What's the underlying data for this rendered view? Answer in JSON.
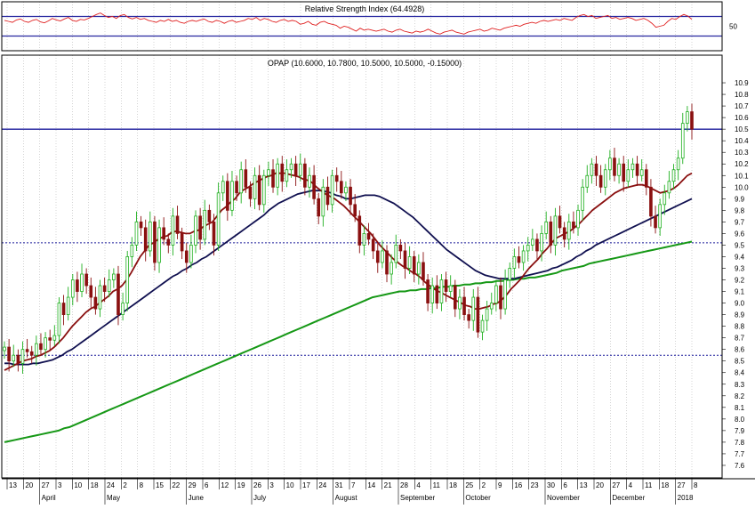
{
  "chart_data": [
    {
      "type": "line",
      "panel": "rsi",
      "title": "Relative Strength Index (64.4928)",
      "ylim": [
        0,
        100
      ],
      "y_ticks": [
        "50"
      ],
      "reference_lines": [
        70,
        30
      ],
      "colors": {
        "rsi": "#e02020",
        "ref": "#2828a0"
      },
      "series": [
        {
          "values": [
            62,
            60,
            58,
            63,
            65,
            60,
            58,
            62,
            64,
            59,
            57,
            61,
            66,
            63,
            61,
            65,
            68,
            62,
            60,
            64,
            63,
            66,
            70,
            74,
            77,
            72,
            68,
            70,
            66,
            72,
            74,
            68,
            65,
            68,
            64,
            66,
            62,
            60,
            58,
            62,
            60,
            64,
            60,
            62,
            58,
            56,
            60,
            62,
            60,
            63,
            65,
            60,
            58,
            62,
            60,
            56,
            60,
            62,
            58,
            60,
            62,
            66,
            64,
            68,
            62,
            66,
            64,
            60,
            58,
            62,
            64,
            60,
            62,
            60,
            54,
            56,
            60,
            54,
            52,
            58,
            60,
            56,
            54,
            52,
            46,
            50,
            48,
            44,
            40,
            46,
            42,
            44,
            42,
            40,
            42,
            44,
            40,
            38,
            42,
            44,
            40,
            38,
            36,
            40,
            38,
            40,
            44,
            40,
            36,
            34,
            38,
            40,
            42,
            38,
            36,
            34,
            38,
            40,
            42,
            44,
            40,
            42,
            46,
            44,
            42,
            46,
            48,
            50,
            52,
            50,
            54,
            56,
            58,
            56,
            60,
            62,
            60,
            62,
            64,
            62,
            66,
            64,
            62,
            68,
            72,
            74,
            70,
            72,
            66,
            68,
            70,
            72,
            66,
            68,
            64,
            66,
            68,
            66,
            62,
            64,
            66,
            62,
            56,
            48,
            50,
            52,
            60,
            66,
            64,
            70,
            74,
            71,
            64
          ]
        }
      ]
    },
    {
      "type": "candlestick",
      "panel": "price",
      "title": "OPAP (10.6000, 10.7800, 10.5000, 10.5000, -0.15000)",
      "ylim": [
        7.5,
        11.0
      ],
      "y_ticks": [
        "10.9",
        "10.8",
        "10.7",
        "10.6",
        "10.5",
        "10.4",
        "10.3",
        "10.2",
        "10.1",
        "10.0",
        "9.9",
        "9.8",
        "9.7",
        "9.6",
        "9.5",
        "9.4",
        "9.3",
        "9.2",
        "9.1",
        "9.0",
        "8.9",
        "8.8",
        "8.7",
        "8.6",
        "8.5",
        "8.4",
        "8.3",
        "8.2",
        "8.1",
        "8.0",
        "7.9",
        "7.8",
        "7.7",
        "7.6"
      ],
      "x_ticks": [
        "13",
        "20",
        "27",
        "3",
        "10",
        "18",
        "24",
        "2",
        "8",
        "15",
        "22",
        "29",
        "6",
        "12",
        "19",
        "26",
        "3",
        "10",
        "17",
        "24",
        "31",
        "7",
        "14",
        "21",
        "28",
        "4",
        "11",
        "18",
        "25",
        "2",
        "9",
        "16",
        "23",
        "30",
        "6",
        "13",
        "20",
        "27",
        "4",
        "11",
        "18",
        "27",
        "8"
      ],
      "month_labels": [
        {
          "label": "April",
          "after_tick": 2
        },
        {
          "label": "May",
          "after_tick": 6
        },
        {
          "label": "June",
          "after_tick": 11
        },
        {
          "label": "July",
          "after_tick": 15
        },
        {
          "label": "August",
          "after_tick": 20
        },
        {
          "label": "September",
          "after_tick": 24
        },
        {
          "label": "October",
          "after_tick": 28
        },
        {
          "label": "November",
          "after_tick": 33
        },
        {
          "label": "December",
          "after_tick": 37
        },
        {
          "label": "2018",
          "after_tick": 41
        }
      ],
      "horizontal_lines": [
        {
          "value": 10.5,
          "style": "solid",
          "color": "#1c1c9c"
        },
        {
          "value": 9.52,
          "style": "dotted",
          "color": "#1c1c9c"
        },
        {
          "value": 8.55,
          "style": "dotted",
          "color": "#1c1c9c"
        }
      ],
      "colors": {
        "up": "#20b020",
        "down": "#8a1010",
        "ma_short": "#8a1010",
        "ma_mid": "#101050",
        "ma_long": "#169816"
      },
      "close": [
        8.62,
        8.5,
        8.55,
        8.48,
        8.6,
        8.58,
        8.55,
        8.65,
        8.6,
        8.7,
        8.68,
        8.72,
        9.0,
        8.9,
        9.05,
        9.2,
        9.1,
        9.25,
        9.15,
        9.05,
        8.95,
        9.15,
        9.1,
        9.2,
        9.25,
        8.9,
        9.0,
        9.4,
        9.5,
        9.7,
        9.65,
        9.45,
        9.7,
        9.35,
        9.65,
        9.55,
        9.5,
        9.75,
        9.6,
        9.45,
        9.35,
        9.5,
        9.75,
        9.55,
        9.8,
        9.7,
        9.5,
        9.95,
        10.05,
        9.8,
        10.05,
        9.95,
        10.15,
        10.0,
        9.9,
        10.1,
        9.85,
        10.1,
        10.15,
        10.0,
        10.2,
        10.05,
        10.15,
        10.2,
        10.1,
        10.2,
        10.0,
        10.1,
        9.9,
        9.75,
        10.0,
        9.85,
        10.1,
        10.05,
        9.95,
        10.0,
        9.85,
        9.75,
        9.5,
        9.6,
        9.55,
        9.45,
        9.35,
        9.45,
        9.25,
        9.35,
        9.5,
        9.45,
        9.3,
        9.4,
        9.25,
        9.35,
        9.2,
        9.0,
        9.15,
        9.0,
        9.2,
        9.1,
        9.15,
        8.95,
        9.05,
        8.9,
        8.85,
        9.05,
        8.75,
        8.85,
        8.95,
        9.0,
        9.15,
        8.95,
        9.2,
        9.3,
        9.4,
        9.35,
        9.45,
        9.5,
        9.55,
        9.45,
        9.6,
        9.7,
        9.5,
        9.75,
        9.65,
        9.55,
        9.7,
        9.65,
        9.8,
        10.0,
        10.1,
        10.2,
        10.1,
        10.0,
        10.15,
        10.25,
        10.1,
        10.2,
        10.05,
        10.15,
        10.2,
        10.1,
        10.15,
        10.0,
        9.75,
        9.65,
        9.85,
        9.95,
        10.05,
        10.15,
        10.25,
        10.55,
        10.65,
        10.5
      ],
      "ma_short": [
        8.42,
        8.44,
        8.46,
        8.48,
        8.5,
        8.51,
        8.52,
        8.54,
        8.55,
        8.57,
        8.59,
        8.62,
        8.66,
        8.7,
        8.75,
        8.8,
        8.84,
        8.88,
        8.92,
        8.95,
        8.97,
        9.0,
        9.03,
        9.06,
        9.1,
        9.12,
        9.15,
        9.2,
        9.26,
        9.33,
        9.4,
        9.45,
        9.5,
        9.52,
        9.55,
        9.57,
        9.58,
        9.61,
        9.62,
        9.61,
        9.6,
        9.6,
        9.62,
        9.63,
        9.66,
        9.68,
        9.7,
        9.75,
        9.8,
        9.83,
        9.87,
        9.9,
        9.95,
        9.98,
        10.0,
        10.03,
        10.05,
        10.07,
        10.09,
        10.1,
        10.12,
        10.12,
        10.12,
        10.11,
        10.1,
        10.09,
        10.07,
        10.06,
        10.04,
        10.0,
        9.97,
        9.94,
        9.92,
        9.9,
        9.87,
        9.84,
        9.8,
        9.76,
        9.72,
        9.68,
        9.64,
        9.6,
        9.55,
        9.5,
        9.46,
        9.42,
        9.38,
        9.35,
        9.32,
        9.3,
        9.27,
        9.25,
        9.22,
        9.18,
        9.15,
        9.12,
        9.1,
        9.08,
        9.06,
        9.04,
        9.02,
        9.0,
        8.98,
        8.97,
        8.95,
        8.95,
        8.96,
        8.97,
        8.99,
        9.0,
        9.03,
        9.07,
        9.12,
        9.16,
        9.2,
        9.25,
        9.3,
        9.34,
        9.38,
        9.43,
        9.47,
        9.52,
        9.56,
        9.58,
        9.6,
        9.62,
        9.65,
        9.68,
        9.72,
        9.76,
        9.8,
        9.83,
        9.86,
        9.89,
        9.92,
        9.95,
        9.97,
        9.99,
        10.0,
        10.01,
        10.02,
        10.02,
        10.01,
        9.99,
        9.97,
        9.95,
        9.96,
        9.97,
        9.99,
        10.02,
        10.06,
        10.1,
        10.12
      ],
      "ma_mid": [
        8.48,
        8.48,
        8.47,
        8.47,
        8.47,
        8.47,
        8.48,
        8.48,
        8.49,
        8.5,
        8.51,
        8.53,
        8.55,
        8.58,
        8.6,
        8.63,
        8.66,
        8.69,
        8.72,
        8.75,
        8.78,
        8.81,
        8.84,
        8.87,
        8.9,
        8.93,
        8.96,
        8.99,
        9.02,
        9.05,
        9.08,
        9.11,
        9.14,
        9.17,
        9.2,
        9.23,
        9.25,
        9.28,
        9.3,
        9.33,
        9.35,
        9.38,
        9.4,
        9.43,
        9.46,
        9.49,
        9.52,
        9.55,
        9.58,
        9.61,
        9.64,
        9.67,
        9.7,
        9.73,
        9.76,
        9.8,
        9.83,
        9.86,
        9.88,
        9.9,
        9.92,
        9.94,
        9.95,
        9.96,
        9.97,
        9.97,
        9.97,
        9.96,
        9.95,
        9.93,
        9.92,
        9.9,
        9.9,
        9.91,
        9.92,
        9.93,
        9.93,
        9.93,
        9.92,
        9.9,
        9.88,
        9.86,
        9.83,
        9.8,
        9.77,
        9.74,
        9.7,
        9.66,
        9.62,
        9.58,
        9.54,
        9.5,
        9.46,
        9.43,
        9.4,
        9.37,
        9.34,
        9.31,
        9.28,
        9.26,
        9.24,
        9.23,
        9.22,
        9.21,
        9.21,
        9.21,
        9.21,
        9.22,
        9.23,
        9.24,
        9.25,
        9.26,
        9.27,
        9.28,
        9.3,
        9.31,
        9.33,
        9.35,
        9.37,
        9.4,
        9.42,
        9.45,
        9.47,
        9.5,
        9.52,
        9.54,
        9.56,
        9.58,
        9.6,
        9.62,
        9.64,
        9.66,
        9.68,
        9.7,
        9.72,
        9.74,
        9.76,
        9.78,
        9.8,
        9.82,
        9.84,
        9.86,
        9.88,
        9.9
      ],
      "ma_long": [
        7.8,
        7.81,
        7.82,
        7.83,
        7.84,
        7.85,
        7.86,
        7.87,
        7.88,
        7.89,
        7.9,
        7.92,
        7.93,
        7.95,
        7.97,
        7.99,
        8.01,
        8.03,
        8.05,
        8.07,
        8.09,
        8.11,
        8.13,
        8.15,
        8.17,
        8.19,
        8.21,
        8.23,
        8.25,
        8.27,
        8.29,
        8.31,
        8.33,
        8.35,
        8.37,
        8.39,
        8.41,
        8.43,
        8.45,
        8.47,
        8.49,
        8.51,
        8.53,
        8.55,
        8.57,
        8.59,
        8.61,
        8.63,
        8.65,
        8.67,
        8.69,
        8.71,
        8.73,
        8.75,
        8.77,
        8.79,
        8.81,
        8.83,
        8.85,
        8.87,
        8.89,
        8.91,
        8.93,
        8.95,
        8.97,
        8.99,
        9.01,
        9.03,
        9.05,
        9.06,
        9.07,
        9.08,
        9.09,
        9.1,
        9.1,
        9.11,
        9.11,
        9.12,
        9.12,
        9.13,
        9.13,
        9.14,
        9.14,
        9.15,
        9.15,
        9.16,
        9.16,
        9.17,
        9.17,
        9.18,
        9.18,
        9.19,
        9.19,
        9.2,
        9.2,
        9.21,
        9.21,
        9.22,
        9.22,
        9.23,
        9.24,
        9.25,
        9.26,
        9.28,
        9.29,
        9.3,
        9.31,
        9.32,
        9.34,
        9.35,
        9.36,
        9.37,
        9.38,
        9.39,
        9.4,
        9.41,
        9.42,
        9.43,
        9.44,
        9.45,
        9.46,
        9.47,
        9.48,
        9.49,
        9.5,
        9.51,
        9.52,
        9.53
      ]
    }
  ]
}
